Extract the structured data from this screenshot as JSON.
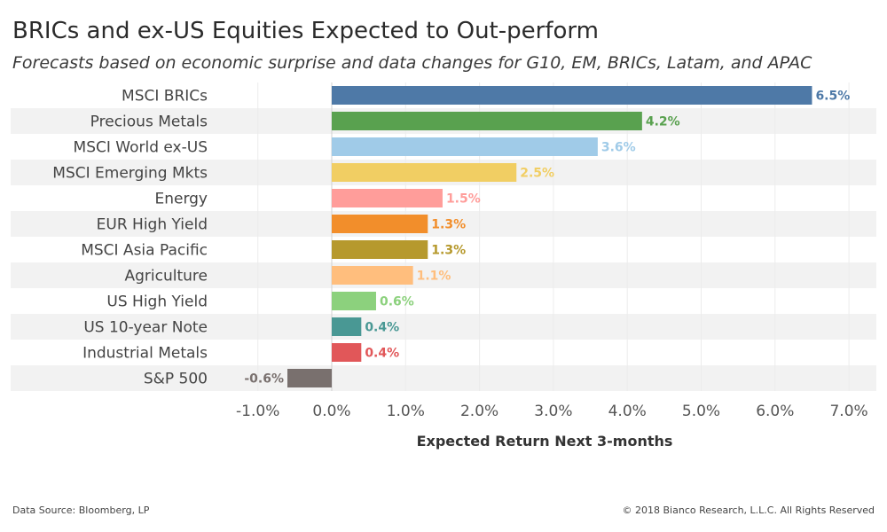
{
  "header": {
    "title": "BRICs and ex-US Equities Expected to Out-perform",
    "subtitle": "Forecasts based on economic surprise and data changes for G10, EM, BRICs, Latam, and APAC"
  },
  "footer": {
    "source": "Data Source: Bloomberg, LP",
    "copyright": "© 2018 Bianco Research, L.L.C. All Rights Reserved"
  },
  "chart_data": {
    "type": "bar",
    "orientation": "horizontal",
    "xlabel": "Expected Return Next 3-months",
    "xlim": [
      -1.6,
      7.0
    ],
    "ticks": [
      -1.0,
      0.0,
      1.0,
      2.0,
      3.0,
      4.0,
      5.0,
      6.0,
      7.0
    ],
    "tick_labels": [
      "-1.0%",
      "0.0%",
      "1.0%",
      "2.0%",
      "3.0%",
      "4.0%",
      "5.0%",
      "6.0%",
      "7.0%"
    ],
    "grid": true,
    "categories": [
      "MSCI BRICs",
      "Precious Metals",
      "MSCI World ex-US",
      "MSCI Emerging Mkts",
      "Energy",
      "EUR High Yield",
      "MSCI Asia Pacific",
      "Agriculture",
      "US High Yield",
      "US 10-year Note",
      "Industrial Metals",
      "S&P 500"
    ],
    "values": [
      6.5,
      4.2,
      3.6,
      2.5,
      1.5,
      1.3,
      1.3,
      1.1,
      0.6,
      0.4,
      0.4,
      -0.6
    ],
    "value_labels": [
      "6.5%",
      "4.2%",
      "3.6%",
      "2.5%",
      "1.5%",
      "1.3%",
      "1.3%",
      "1.1%",
      "0.6%",
      "0.4%",
      "0.4%",
      "-0.6%"
    ],
    "colors": [
      "#4e79a7",
      "#59a14f",
      "#a0cbe8",
      "#f1ce63",
      "#ff9d9a",
      "#f28e2b",
      "#b6992d",
      "#ffbe7d",
      "#8cd17d",
      "#499894",
      "#e15759",
      "#79706e"
    ],
    "row_band_color": "#f2f2f2"
  }
}
